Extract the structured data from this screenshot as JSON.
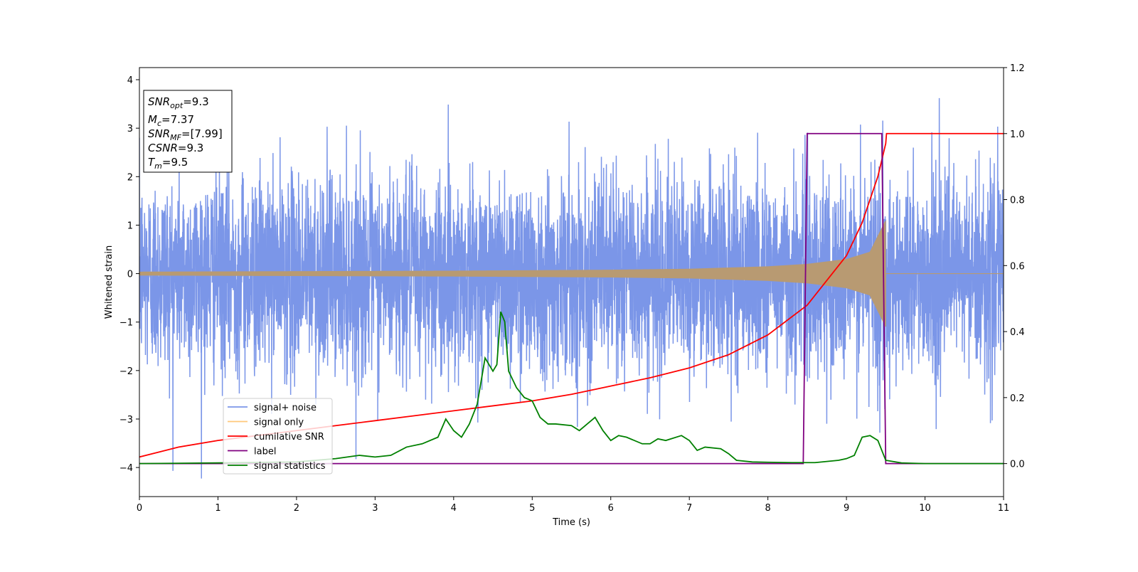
{
  "chart_data": {
    "type": "line",
    "xlabel": "Time (s)",
    "ylabel": "Whitened strain",
    "xlim": [
      0,
      11
    ],
    "ylim_left": [
      -4.6,
      4.25
    ],
    "ylim_right": [
      -0.1,
      1.2
    ],
    "x_ticks": [
      0,
      1,
      2,
      3,
      4,
      5,
      6,
      7,
      8,
      9,
      10,
      11
    ],
    "y_ticks_left": [
      -4,
      -3,
      -2,
      -1,
      0,
      1,
      2,
      3,
      4
    ],
    "y_ticks_right": [
      0.0,
      0.2,
      0.4,
      0.6,
      0.8,
      1.0,
      1.2
    ],
    "legend_position": "lower-left",
    "info_box": [
      {
        "main": "SNR",
        "sub": "opt",
        "value": "=9.3"
      },
      {
        "main": "M",
        "sub": "c",
        "value": "=7.37"
      },
      {
        "main": "SNR",
        "sub": "MF",
        "value": "=[7.99]"
      },
      {
        "main": "CSNR",
        "sub": "",
        "value": "=9.3"
      },
      {
        "main": "T",
        "sub": "m",
        "value": "=9.5"
      }
    ],
    "series": [
      {
        "name": "signal+ noise",
        "axis": "left",
        "color": "#7b96e8",
        "noise_std": 1.0,
        "description_points": {
          "x_start": 0,
          "x_end": 11
        }
      },
      {
        "name": "signal only",
        "axis": "left",
        "color": "#ffc87a",
        "envelope": {
          "x": [
            0,
            1,
            2,
            3,
            4,
            5,
            6,
            7,
            8,
            8.5,
            9,
            9.3,
            9.5
          ],
          "amp": [
            0.04,
            0.045,
            0.05,
            0.055,
            0.06,
            0.07,
            0.08,
            0.1,
            0.15,
            0.2,
            0.3,
            0.45,
            1.1
          ]
        },
        "merger_time": 9.5
      },
      {
        "name": "cumilative SNR",
        "axis": "right",
        "color": "#ff0000",
        "x": [
          0,
          0.5,
          1,
          1.5,
          2,
          2.5,
          3,
          3.5,
          4,
          4.5,
          5,
          5.5,
          6,
          6.5,
          7,
          7.5,
          8,
          8.5,
          9,
          9.2,
          9.4,
          9.5,
          9.51,
          11
        ],
        "values": [
          0.02,
          0.05,
          0.07,
          0.085,
          0.1,
          0.115,
          0.13,
          0.145,
          0.16,
          0.175,
          0.19,
          0.21,
          0.235,
          0.26,
          0.29,
          0.33,
          0.39,
          0.48,
          0.63,
          0.73,
          0.87,
          0.97,
          1.0,
          1.0
        ]
      },
      {
        "name": "label",
        "axis": "right",
        "color": "#800080",
        "x": [
          0,
          8.45,
          8.5,
          9.45,
          9.5,
          11
        ],
        "values": [
          0,
          0,
          1,
          1,
          0,
          0
        ]
      },
      {
        "name": "signal statistics",
        "axis": "right",
        "color": "#008000",
        "x": [
          0,
          1,
          2,
          2.5,
          2.8,
          3.0,
          3.2,
          3.4,
          3.6,
          3.8,
          3.9,
          4.0,
          4.1,
          4.2,
          4.3,
          4.4,
          4.5,
          4.55,
          4.6,
          4.65,
          4.7,
          4.8,
          4.9,
          5.0,
          5.1,
          5.2,
          5.3,
          5.5,
          5.6,
          5.7,
          5.8,
          5.9,
          6.0,
          6.1,
          6.2,
          6.4,
          6.5,
          6.6,
          6.7,
          6.9,
          7.0,
          7.1,
          7.2,
          7.4,
          7.5,
          7.6,
          7.8,
          8.0,
          8.3,
          8.6,
          8.9,
          9.0,
          9.1,
          9.2,
          9.3,
          9.4,
          9.5,
          9.7,
          10,
          11
        ],
        "values": [
          0.0,
          0.002,
          0.005,
          0.015,
          0.025,
          0.02,
          0.025,
          0.05,
          0.06,
          0.08,
          0.135,
          0.1,
          0.08,
          0.12,
          0.18,
          0.32,
          0.28,
          0.3,
          0.46,
          0.43,
          0.28,
          0.23,
          0.2,
          0.19,
          0.14,
          0.12,
          0.12,
          0.115,
          0.1,
          0.12,
          0.14,
          0.1,
          0.07,
          0.085,
          0.08,
          0.06,
          0.06,
          0.075,
          0.07,
          0.085,
          0.07,
          0.04,
          0.05,
          0.045,
          0.03,
          0.01,
          0.005,
          0.004,
          0.003,
          0.003,
          0.01,
          0.015,
          0.025,
          0.08,
          0.085,
          0.07,
          0.01,
          0.002,
          0.0,
          0.0
        ]
      }
    ]
  }
}
